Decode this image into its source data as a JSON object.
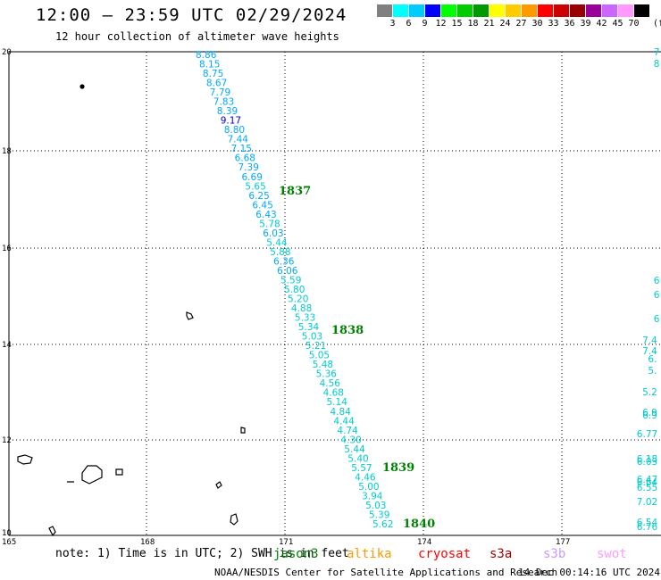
{
  "title": "12:00 – 23:59 UTC 02/29/2024",
  "subtitle": "12 hour collection of altimeter wave heights",
  "colorbar": {
    "unit": "(ft)",
    "colors": [
      "#808080",
      "#00ffff",
      "#00ccff",
      "#0000ff",
      "#00ff00",
      "#00cc00",
      "#009900",
      "#ffff00",
      "#ffcc00",
      "#ff9900",
      "#ff0000",
      "#cc0000",
      "#990000",
      "#990099",
      "#cc66ff",
      "#ff99ff",
      "#000000"
    ],
    "labels": [
      "3",
      "6",
      "9",
      "12",
      "15",
      "18",
      "21",
      "24",
      "27",
      "30",
      "33",
      "36",
      "39",
      "42",
      "45",
      "70"
    ]
  },
  "axes": {
    "x_ticks": [
      "165",
      "168",
      "171",
      "174",
      "177"
    ],
    "y_ticks": [
      "20",
      "18",
      "16",
      "14",
      "12",
      "10"
    ]
  },
  "track_labels": [
    {
      "text": "1837",
      "color": "#008000"
    },
    {
      "text": "1838",
      "color": "#008000"
    },
    {
      "text": "1839",
      "color": "#008000"
    },
    {
      "text": "1840",
      "color": "#008000"
    }
  ],
  "wave_heights": [
    "8.86",
    "8.15",
    "8.75",
    "8.67",
    "7.79",
    "7.83",
    "8.39",
    "9.17",
    "8.80",
    "7.44",
    "7.15",
    "6.68",
    "7.39",
    "6.69",
    "5.65",
    "6.25",
    "6.45",
    "6.43",
    "5.78",
    "6.03",
    "5.44",
    "5.88",
    "6.36",
    "6.06",
    "5.59",
    "5.80",
    "5.20",
    "4.88",
    "5.33",
    "5.34",
    "5.03",
    "5.21",
    "5.05",
    "5.48",
    "5.36",
    "4.56",
    "4.68",
    "5.14",
    "4.84",
    "4.44",
    "4.74",
    "4.30",
    "5.44",
    "5.40",
    "5.57",
    "4.46",
    "5.00",
    "3.94",
    "5.03",
    "5.39",
    "5.62"
  ],
  "right_edge_labels": [
    "7",
    "8",
    "6",
    "6",
    "6",
    "7.4",
    "7.4",
    "6.",
    "5.",
    "5.2",
    "6.9",
    "6.9",
    "6.77",
    "6.18",
    "6.03",
    "6.47",
    "6.64",
    "6.55",
    "7.02",
    "6.54",
    "6.76"
  ],
  "note": "note: 1) Time is in UTC; 2) SWH is in feet",
  "satellites": [
    {
      "name": "jason3",
      "color": "#008000"
    },
    {
      "name": "altika",
      "color": "#ff9900"
    },
    {
      "name": "cryosat",
      "color": "#ff0000"
    },
    {
      "name": "s3a",
      "color": "#990000"
    },
    {
      "name": "s3b",
      "color": "#cc99ff"
    },
    {
      "name": "swot",
      "color": "#ff99ff"
    }
  ],
  "footer": "NOAA/NESDIS Center for Satellite Applications and Research",
  "timestamp": "14 Dec 00:14:16 UTC 2024"
}
